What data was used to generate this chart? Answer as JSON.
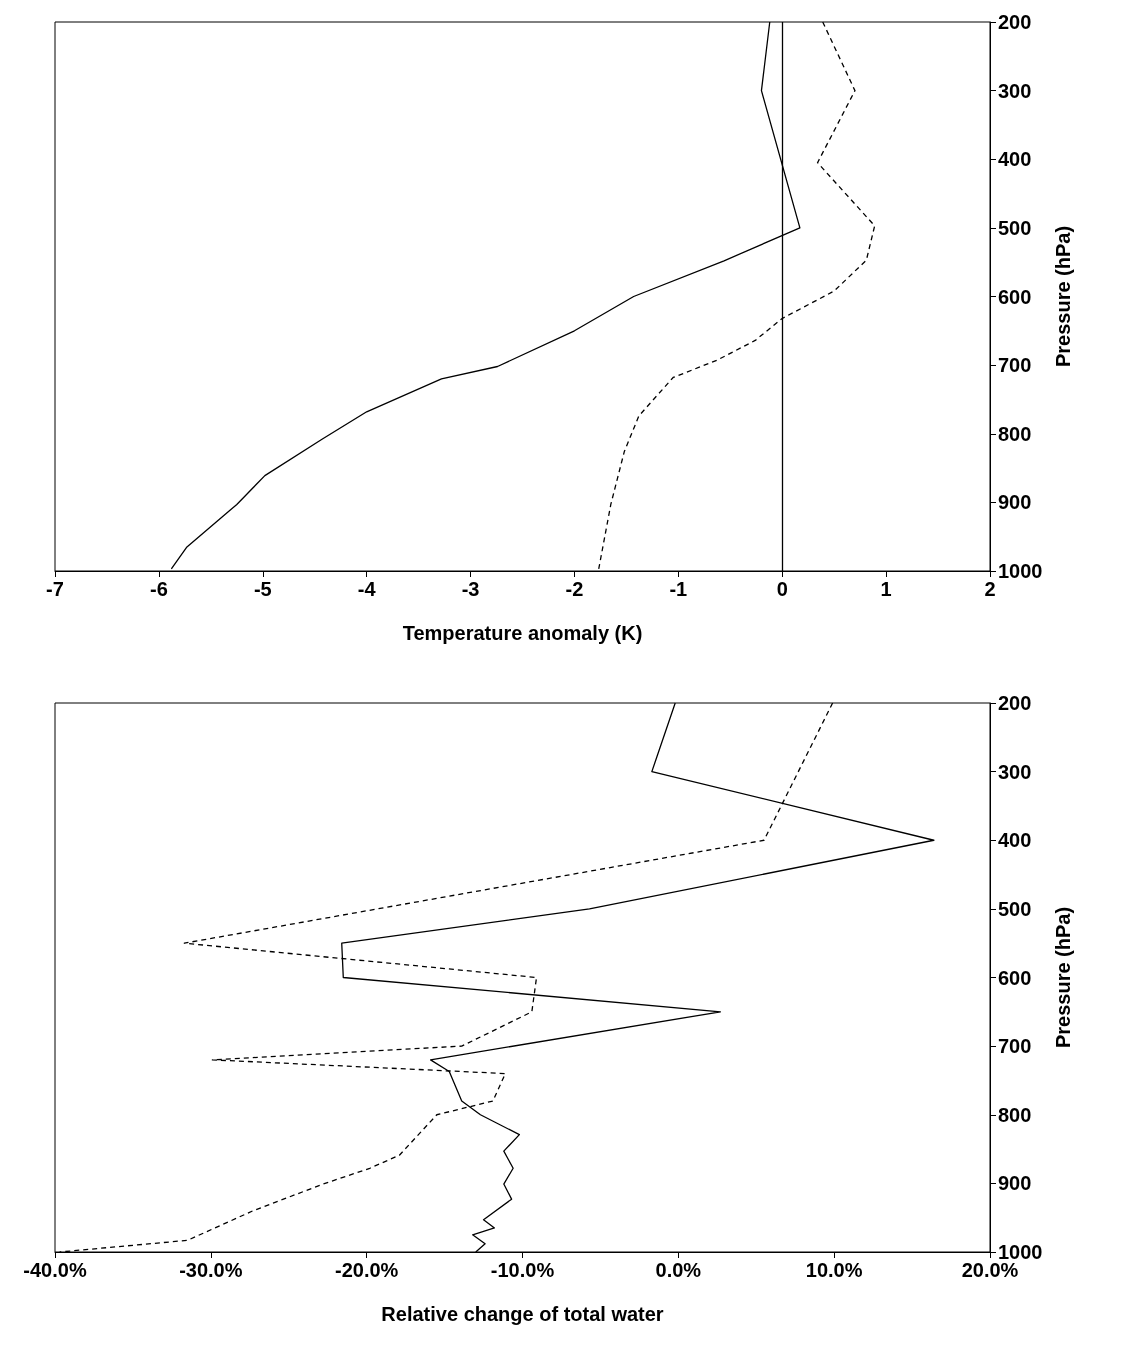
{
  "chart_data": [
    {
      "type": "line",
      "xlabel": "Temperature anomaly (K)",
      "ylabel": "Pressure (hPa)",
      "xlim": [
        -7,
        2
      ],
      "xticks": [
        -7,
        -6,
        -5,
        -4,
        -3,
        -2,
        -1,
        0,
        1,
        2
      ],
      "ylim": [
        1000,
        200
      ],
      "yticks": [
        200,
        300,
        400,
        500,
        600,
        700,
        800,
        900,
        1000
      ],
      "ref_lines": [
        {
          "axis": "x",
          "value": 0,
          "color": "#000000",
          "line_style": "solid"
        }
      ],
      "series": [
        {
          "color": "#000000",
          "line_style": "solid",
          "x": [
            -0.12,
            -0.2,
            0.17,
            -0.56,
            -1.43,
            -2.0,
            -2.74,
            -3.28,
            -4.0,
            -4.43,
            -4.98,
            -5.25,
            -5.73,
            -5.88
          ],
          "values": [
            200,
            300,
            500,
            548,
            600,
            650,
            702,
            720,
            768,
            808,
            861,
            903,
            965,
            997
          ]
        },
        {
          "color": "#000000",
          "line_style": "dashed",
          "x": [
            0.39,
            0.7,
            0.34,
            0.89,
            0.81,
            0.5,
            0.0,
            -0.26,
            -0.63,
            -1.05,
            -1.38,
            -1.52,
            -1.65,
            -1.77
          ],
          "values": [
            200,
            300,
            405,
            497,
            547,
            592,
            632,
            664,
            693,
            718,
            774,
            826,
            903,
            1000
          ]
        }
      ]
    },
    {
      "type": "line",
      "xlabel": "Relative change of total water",
      "ylabel": "Pressure (hPa)",
      "xlim": [
        -40,
        20
      ],
      "xticks": [
        {
          "value": -40,
          "label": "-40.0%"
        },
        {
          "value": -30,
          "label": "-30.0%"
        },
        {
          "value": -20,
          "label": "-20.0%"
        },
        {
          "value": -10,
          "label": "-10.0%"
        },
        {
          "value": 0,
          "label": "0.0%"
        },
        {
          "value": 10,
          "label": "10.0%"
        },
        {
          "value": 20,
          "label": "20.0%"
        }
      ],
      "ylim": [
        1000,
        200
      ],
      "yticks": [
        200,
        300,
        400,
        500,
        600,
        700,
        800,
        900,
        1000
      ],
      "series": [
        {
          "color": "#000000",
          "line_style": "solid",
          "x": [
            -0.2,
            -1.7,
            16.4,
            -5.7,
            -21.6,
            -21.5,
            2.7,
            -15.9,
            -14.7,
            -13.9,
            -12.7,
            -10.2,
            -11.2,
            -10.6,
            -11.2,
            -10.7,
            -12.5,
            -11.8,
            -13.2,
            -12.4,
            -13.0
          ],
          "values": [
            200,
            300,
            400,
            500,
            550,
            600,
            650,
            720,
            737,
            780,
            800,
            829,
            853,
            878,
            901,
            923,
            953,
            965,
            975,
            988,
            1000
          ]
        },
        {
          "color": "#000000",
          "line_style": "dashed",
          "x": [
            9.9,
            5.5,
            -31.7,
            -9.1,
            -9.4,
            -13.9,
            -29.9,
            -11.1,
            -11.9,
            -15.5,
            -17.9,
            -19.8,
            -22.8,
            -27.3,
            -31.5,
            -39.7
          ],
          "values": [
            200,
            400,
            550,
            600,
            650,
            700,
            720,
            740,
            780,
            800,
            859,
            878,
            901,
            940,
            983,
            1000
          ]
        }
      ]
    }
  ]
}
